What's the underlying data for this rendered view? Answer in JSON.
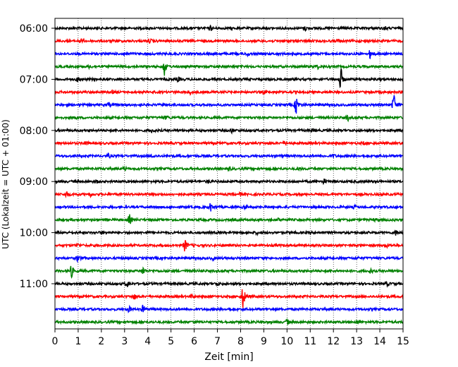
{
  "chart_data": {
    "type": "line",
    "title": "",
    "xlabel": "Zeit  [min]",
    "ylabel": "UTC (Lokalzeit = UTC + 01:00)",
    "xlim": [
      0,
      15
    ],
    "x_ticks": [
      "0",
      "1",
      "2",
      "3",
      "4",
      "5",
      "6",
      "7",
      "8",
      "9",
      "10",
      "11",
      "12",
      "13",
      "14",
      "15"
    ],
    "y_ticks": [
      "06:00",
      "07:00",
      "08:00",
      "09:00",
      "10:00",
      "11:00"
    ],
    "grid": "vertical-dotted",
    "trace_colors": [
      "#000000",
      "#ff0000",
      "#0000ff",
      "#008000"
    ],
    "traces": [
      {
        "start": "06:00",
        "events": [
          {
            "t": 6.7,
            "amp": 0.18
          },
          {
            "t": 10.8,
            "amp": 0.15
          },
          {
            "t": 14.2,
            "amp": 0.12
          }
        ]
      },
      {
        "start": "06:15",
        "events": [
          {
            "t": 1.1,
            "amp": 0.15
          },
          {
            "t": 4.1,
            "amp": 0.12
          },
          {
            "t": 12.2,
            "amp": 0.1
          }
        ]
      },
      {
        "start": "06:30",
        "events": [
          {
            "t": 13.6,
            "amp": 0.45
          },
          {
            "t": 3.0,
            "amp": 0.12
          },
          {
            "t": 8.3,
            "amp": 0.12
          }
        ]
      },
      {
        "start": "06:45",
        "events": [
          {
            "t": 4.7,
            "amp": 0.7
          },
          {
            "t": 11.3,
            "amp": 0.15
          },
          {
            "t": 1.5,
            "amp": 0.1
          }
        ]
      },
      {
        "start": "07:00",
        "events": [
          {
            "t": 12.3,
            "amp": 0.95
          },
          {
            "t": 1.0,
            "amp": 0.2
          },
          {
            "t": 5.3,
            "amp": 0.15
          }
        ]
      },
      {
        "start": "07:15",
        "events": [
          {
            "t": 5.8,
            "amp": 0.15
          },
          {
            "t": 9.0,
            "amp": 0.12
          },
          {
            "t": 2.5,
            "amp": 0.1
          }
        ]
      },
      {
        "start": "07:30",
        "events": [
          {
            "t": 10.4,
            "amp": 0.8
          },
          {
            "t": 14.6,
            "amp": 0.8
          },
          {
            "t": 2.3,
            "amp": 0.15
          }
        ]
      },
      {
        "start": "07:45",
        "events": [
          {
            "t": 12.6,
            "amp": 0.2
          },
          {
            "t": 4.8,
            "amp": 0.12
          },
          {
            "t": 0.9,
            "amp": 0.1
          }
        ]
      },
      {
        "start": "08:00",
        "events": [
          {
            "t": 4.2,
            "amp": 0.15
          },
          {
            "t": 7.6,
            "amp": 0.15
          },
          {
            "t": 11.1,
            "amp": 0.12
          }
        ]
      },
      {
        "start": "08:15",
        "events": [
          {
            "t": 1.3,
            "amp": 0.15
          },
          {
            "t": 9.9,
            "amp": 0.15
          },
          {
            "t": 13.3,
            "amp": 0.1
          }
        ]
      },
      {
        "start": "08:30",
        "events": [
          {
            "t": 2.3,
            "amp": 0.15
          },
          {
            "t": 4.2,
            "amp": 0.12
          },
          {
            "t": 12.0,
            "amp": 0.1
          }
        ]
      },
      {
        "start": "08:45",
        "events": [
          {
            "t": 3.0,
            "amp": 0.12
          },
          {
            "t": 7.5,
            "amp": 0.12
          },
          {
            "t": 10.5,
            "amp": 0.1
          }
        ]
      },
      {
        "start": "09:00",
        "events": [
          {
            "t": 11.6,
            "amp": 0.2
          },
          {
            "t": 6.6,
            "amp": 0.12
          },
          {
            "t": 1.8,
            "amp": 0.1
          }
        ]
      },
      {
        "start": "09:15",
        "events": [
          {
            "t": 0.5,
            "amp": 0.25
          },
          {
            "t": 1.5,
            "amp": 0.15
          },
          {
            "t": 8.0,
            "amp": 0.1
          }
        ]
      },
      {
        "start": "09:30",
        "events": [
          {
            "t": 6.7,
            "amp": 0.3
          },
          {
            "t": 8.2,
            "amp": 0.15
          },
          {
            "t": 12.9,
            "amp": 0.1
          }
        ]
      },
      {
        "start": "09:45",
        "events": [
          {
            "t": 3.2,
            "amp": 0.35
          },
          {
            "t": 9.6,
            "amp": 0.12
          },
          {
            "t": 13.8,
            "amp": 0.1
          }
        ]
      },
      {
        "start": "10:00",
        "events": [
          {
            "t": 14.7,
            "amp": 0.2
          },
          {
            "t": 2.0,
            "amp": 0.1
          },
          {
            "t": 8.7,
            "amp": 0.1
          }
        ]
      },
      {
        "start": "10:15",
        "events": [
          {
            "t": 5.6,
            "amp": 0.5
          },
          {
            "t": 14.3,
            "amp": 0.12
          },
          {
            "t": 1.0,
            "amp": 0.1
          }
        ]
      },
      {
        "start": "10:30",
        "events": [
          {
            "t": 1.0,
            "amp": 0.3
          },
          {
            "t": 6.8,
            "amp": 0.12
          },
          {
            "t": 13.0,
            "amp": 0.1
          }
        ]
      },
      {
        "start": "10:45",
        "events": [
          {
            "t": 0.7,
            "amp": 0.45
          },
          {
            "t": 3.8,
            "amp": 0.3
          },
          {
            "t": 13.6,
            "amp": 0.15
          }
        ]
      },
      {
        "start": "11:00",
        "events": [
          {
            "t": 3.1,
            "amp": 0.2
          },
          {
            "t": 14.3,
            "amp": 0.15
          },
          {
            "t": 7.0,
            "amp": 0.1
          }
        ]
      },
      {
        "start": "11:15",
        "events": [
          {
            "t": 8.1,
            "amp": 1.0
          },
          {
            "t": 3.4,
            "amp": 0.2
          },
          {
            "t": 5.9,
            "amp": 0.12
          }
        ]
      },
      {
        "start": "11:30",
        "events": [
          {
            "t": 3.8,
            "amp": 0.35
          },
          {
            "t": 3.2,
            "amp": 0.2
          },
          {
            "t": 7.5,
            "amp": 0.12
          }
        ]
      },
      {
        "start": "11:45",
        "events": [
          {
            "t": 10.0,
            "amp": 0.2
          },
          {
            "t": 6.0,
            "amp": 0.1
          },
          {
            "t": 13.0,
            "amp": 0.1
          }
        ]
      }
    ]
  }
}
